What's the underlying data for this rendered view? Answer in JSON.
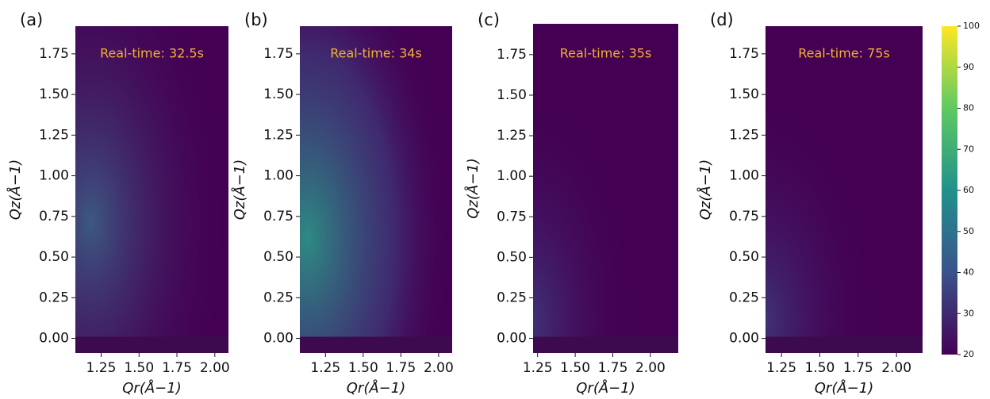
{
  "chart_data": [
    {
      "type": "heatmap",
      "panel_label": "(a)",
      "annotation": "Real-time: 32.5s",
      "xlabel": "Qr(Å−1)",
      "ylabel": "Qz(Å−1)",
      "xlim": [
        1.08,
        2.09
      ],
      "ylim": [
        -0.09,
        1.92
      ],
      "xticks": [
        1.25,
        {
          "value": 1.5,
          "label": "1.50"
        },
        1.75,
        {
          "value": 2.0,
          "label": "2.00"
        }
      ],
      "yticks": [
        {
          "value": 0,
          "label": "0.00"
        },
        0.25,
        {
          "value": 0.5,
          "label": "0.50"
        },
        0.75,
        {
          "value": 1.0,
          "label": "1.00"
        },
        1.25,
        {
          "value": 1.5,
          "label": "1.50"
        },
        1.75
      ]
    },
    {
      "type": "heatmap",
      "panel_label": "(b)",
      "annotation": "Real-time: 34s",
      "xlabel": "Qr(Å−1)",
      "ylabel": "Qz(Å−1)",
      "xlim": [
        1.08,
        2.09
      ],
      "ylim": [
        -0.09,
        1.92
      ],
      "xticks": [
        1.25,
        {
          "value": 1.5,
          "label": "1.50"
        },
        1.75,
        {
          "value": 2.0,
          "label": "2.00"
        }
      ],
      "yticks": [
        {
          "value": 0,
          "label": "0.00"
        },
        0.25,
        {
          "value": 0.5,
          "label": "0.50"
        },
        0.75,
        {
          "value": 1.0,
          "label": "1.00"
        },
        1.25,
        {
          "value": 1.5,
          "label": "1.50"
        },
        1.75
      ]
    },
    {
      "type": "heatmap",
      "panel_label": "(c)",
      "annotation": "Real-time: 35s",
      "xlabel": "Qr(Å−1)",
      "ylabel": "Qz(Å−1)",
      "xlim": [
        1.22,
        2.185
      ],
      "ylim": [
        -0.09,
        1.94
      ],
      "xticks": [
        1.25,
        {
          "value": 1.5,
          "label": "1.50"
        },
        1.75,
        {
          "value": 2.0,
          "label": "2.00"
        }
      ],
      "yticks": [
        {
          "value": 0,
          "label": "0.00"
        },
        0.25,
        {
          "value": 0.5,
          "label": "0.50"
        },
        0.75,
        {
          "value": 1.0,
          "label": "1.00"
        },
        1.25,
        {
          "value": 1.5,
          "label": "1.50"
        },
        1.75
      ]
    },
    {
      "type": "heatmap",
      "panel_label": "(d)",
      "annotation": "Real-time: 75s",
      "xlabel": "Qr(Å−1)",
      "ylabel": "Qz(Å−1)",
      "xlim": [
        1.146,
        2.17
      ],
      "ylim": [
        -0.09,
        1.92
      ],
      "xticks": [
        1.25,
        {
          "value": 1.5,
          "label": "1.50"
        },
        1.75,
        {
          "value": 2.0,
          "label": "2.00"
        }
      ],
      "yticks": [
        {
          "value": 0,
          "label": "0.00"
        },
        0.25,
        {
          "value": 0.5,
          "label": "0.50"
        },
        0.75,
        {
          "value": 1.0,
          "label": "1.00"
        },
        1.25,
        {
          "value": 1.5,
          "label": "1.50"
        },
        1.75
      ],
      "colorbar": {
        "lim": [
          20,
          100
        ],
        "ticks": [
          20,
          30,
          40,
          50,
          60,
          70,
          80,
          90,
          100
        ]
      }
    }
  ]
}
